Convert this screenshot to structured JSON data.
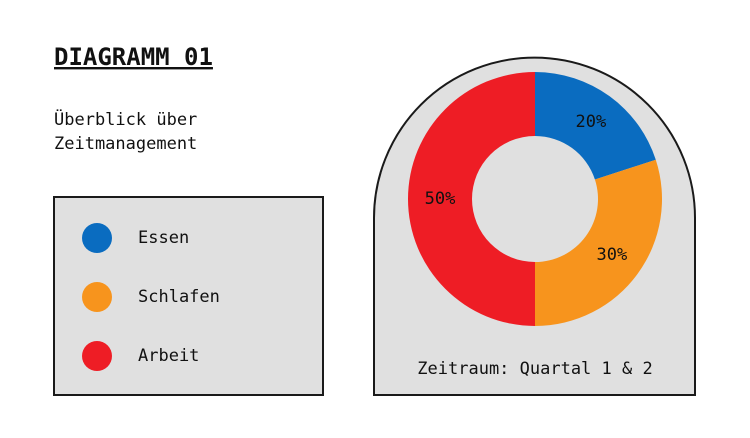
{
  "chart_data": {
    "type": "donut",
    "title": "DIAGRAMM 01",
    "subtitle": "Überblick über Zeitmanagement",
    "categories": [
      "Essen",
      "Schlafen",
      "Arbeit"
    ],
    "values": [
      20,
      30,
      50
    ],
    "value_labels": [
      "20%",
      "30%",
      "50%"
    ],
    "colors": [
      "#0a6cc0",
      "#f7941d",
      "#ee1d25"
    ],
    "annotation": "Zeitraum: Quartal 1 & 2"
  }
}
